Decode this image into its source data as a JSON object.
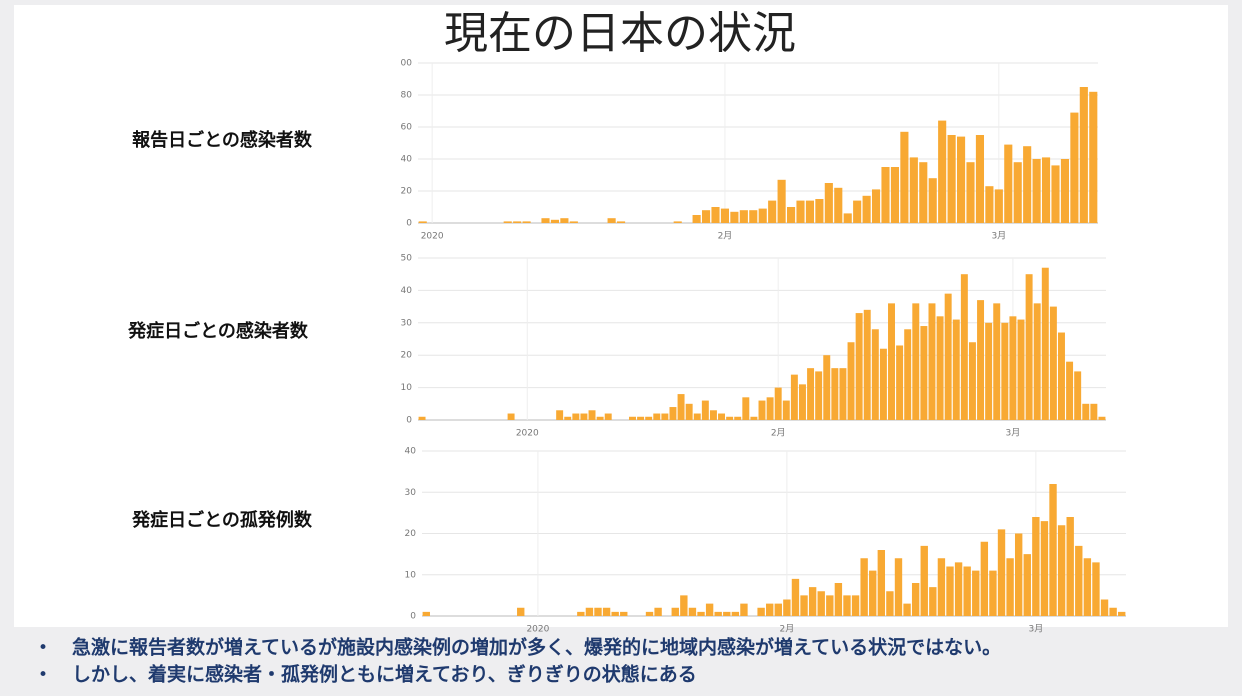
{
  "title": "現在の日本の状況",
  "chart_data": [
    {
      "type": "bar",
      "title": "報告日ごとの感染者数",
      "color": "#f8a933",
      "grid": true,
      "categories": [
        null,
        "2020",
        null,
        null,
        null,
        null,
        null,
        null,
        null,
        null,
        null,
        null,
        null,
        null,
        null,
        null,
        null,
        null,
        null,
        null,
        null,
        null,
        null,
        null,
        null,
        null,
        null,
        null,
        null,
        null,
        null,
        null,
        "2月",
        null,
        null,
        null,
        null,
        null,
        null,
        null,
        null,
        null,
        null,
        null,
        null,
        null,
        null,
        null,
        null,
        null,
        null,
        null,
        null,
        null,
        null,
        null,
        null,
        null,
        null,
        null,
        null,
        "3月",
        null,
        null,
        null,
        null,
        null,
        null,
        null,
        null,
        null,
        null
      ],
      "values": [
        1,
        0,
        0,
        0,
        0,
        0,
        0,
        0,
        0,
        1,
        1,
        1,
        0,
        3,
        2,
        3,
        1,
        0,
        0,
        0,
        3,
        1,
        0,
        0,
        0,
        0,
        0,
        1,
        0,
        5,
        8,
        10,
        9,
        7,
        8,
        8,
        9,
        14,
        27,
        10,
        14,
        14,
        15,
        25,
        22,
        6,
        14,
        17,
        21,
        35,
        35,
        57,
        41,
        38,
        28,
        64,
        55,
        54,
        38,
        55,
        23,
        21,
        49,
        38,
        48,
        40,
        41,
        36,
        40,
        69,
        85,
        82
      ],
      "ylim": [
        0,
        100
      ],
      "yticks": [
        0,
        20,
        40,
        60,
        80,
        {
          "value": 100,
          "label": "00"
        }
      ]
    },
    {
      "type": "bar",
      "title": "発症日ごとの感染者数",
      "color": "#f8a933",
      "grid": true,
      "categories": [
        null,
        null,
        null,
        null,
        null,
        null,
        null,
        null,
        null,
        null,
        null,
        null,
        null,
        "2020",
        null,
        null,
        null,
        null,
        null,
        null,
        null,
        null,
        null,
        null,
        null,
        null,
        null,
        null,
        null,
        null,
        null,
        null,
        null,
        null,
        null,
        null,
        null,
        null,
        null,
        null,
        null,
        null,
        null,
        null,
        "2月",
        null,
        null,
        null,
        null,
        null,
        null,
        null,
        null,
        null,
        null,
        null,
        null,
        null,
        null,
        null,
        null,
        null,
        null,
        null,
        null,
        null,
        null,
        null,
        null,
        null,
        null,
        null,
        null,
        "3月",
        null,
        null,
        null,
        null,
        null,
        null,
        null,
        null,
        null,
        null,
        null
      ],
      "values": [
        1,
        0,
        0,
        0,
        0,
        0,
        0,
        0,
        0,
        0,
        0,
        2,
        0,
        0,
        0,
        0,
        0,
        3,
        1,
        2,
        2,
        3,
        1,
        2,
        0,
        0,
        1,
        1,
        1,
        2,
        2,
        4,
        8,
        5,
        2,
        6,
        3,
        2,
        1,
        1,
        7,
        1,
        6,
        7,
        10,
        6,
        14,
        11,
        16,
        15,
        20,
        16,
        16,
        24,
        33,
        34,
        28,
        22,
        36,
        23,
        28,
        36,
        29,
        36,
        32,
        39,
        31,
        45,
        24,
        37,
        30,
        36,
        30,
        32,
        31,
        45,
        36,
        47,
        35,
        27,
        18,
        15,
        5,
        5,
        1
      ],
      "ylim": [
        0,
        50
      ],
      "yticks": [
        0,
        10,
        20,
        30,
        40,
        50
      ]
    },
    {
      "type": "bar",
      "title": "発症日ごとの孤発例数",
      "color": "#f8a933",
      "grid": true,
      "categories": [
        null,
        null,
        null,
        null,
        null,
        null,
        null,
        null,
        null,
        null,
        null,
        null,
        null,
        "2020",
        null,
        null,
        null,
        null,
        null,
        null,
        null,
        null,
        null,
        null,
        null,
        null,
        null,
        null,
        null,
        null,
        null,
        null,
        null,
        null,
        null,
        null,
        null,
        null,
        null,
        null,
        null,
        null,
        "2月",
        null,
        null,
        null,
        null,
        null,
        null,
        null,
        null,
        null,
        null,
        null,
        null,
        null,
        null,
        null,
        null,
        null,
        null,
        null,
        null,
        null,
        null,
        null,
        null,
        null,
        null,
        null,
        null,
        "3月",
        null,
        null,
        null,
        null,
        null,
        null,
        null,
        null,
        null,
        null
      ],
      "values": [
        1,
        0,
        0,
        0,
        0,
        0,
        0,
        0,
        0,
        0,
        0,
        2,
        0,
        0,
        0,
        0,
        0,
        0,
        1,
        2,
        2,
        2,
        1,
        1,
        0,
        0,
        1,
        2,
        0,
        2,
        5,
        2,
        1,
        3,
        1,
        1,
        1,
        3,
        0,
        2,
        3,
        3,
        4,
        9,
        5,
        7,
        6,
        5,
        8,
        5,
        5,
        14,
        11,
        16,
        6,
        14,
        3,
        8,
        17,
        7,
        14,
        12,
        13,
        12,
        11,
        18,
        11,
        21,
        14,
        20,
        15,
        24,
        23,
        32,
        22,
        24,
        17,
        14,
        13,
        4,
        2,
        1
      ],
      "ylim": [
        0,
        40
      ],
      "yticks": [
        0,
        10,
        20,
        30,
        40
      ]
    }
  ],
  "bullets": [
    "急激に報告者数が増えているが施設内感染例の増加が多く、爆発的に地域内感染が増えている状況ではない。",
    "しかし、着実に感染者・孤発例ともに増えており、ぎりぎりの状態にある"
  ]
}
